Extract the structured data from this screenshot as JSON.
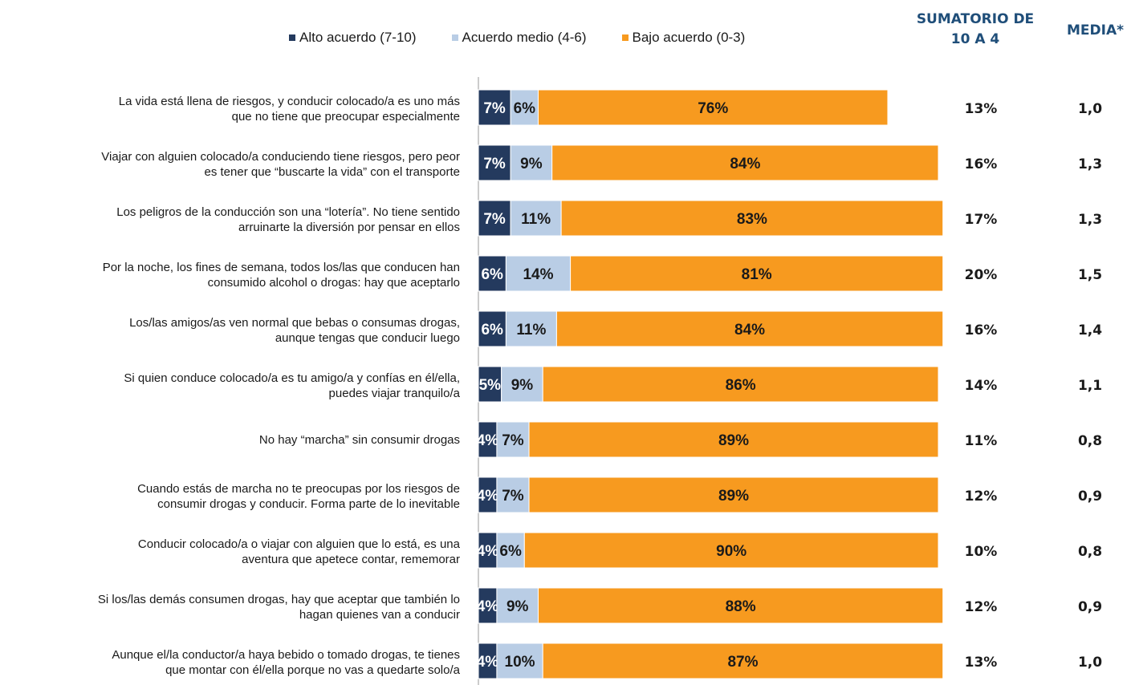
{
  "legend": [
    {
      "label": "Alto acuerdo (7-10)",
      "color": "#243a5e"
    },
    {
      "label": "Acuerdo medio (4-6)",
      "color": "#b9cde5"
    },
    {
      "label": "Bajo acuerdo (0-3)",
      "color": "#f79a1f"
    }
  ],
  "headers": {
    "sum": "SUMATORIO DE\n10 A 4",
    "media": "MEDIA*"
  },
  "chart_data": {
    "type": "bar",
    "orientation": "horizontal",
    "stacked": true,
    "categories": [
      "La vida está llena de riesgos, y conducir colocado/a es uno más\nque no tiene que preocupar especialmente",
      "Viajar con alguien colocado/a conduciendo tiene riesgos, pero peor\nes tener que “buscarte la vida” con el transporte",
      "Los peligros de la conducción son una “lotería”. No tiene sentido\narruinarte la diversión por pensar en ellos",
      "Por la noche, los fines de semana, todos los/las que conducen han\nconsumido alcohol o drogas: hay que aceptarlo",
      "Los/las amigos/as ven normal que bebas o consumas drogas,\naunque tengas que conducir luego",
      "Si quien conduce colocado/a es tu amigo/a y confías en él/ella,\npuedes viajar tranquilo/a",
      "No hay “marcha” sin consumir drogas",
      "Cuando estás de marcha no te preocupas por los riesgos de\nconsumir drogas y conducir. Forma parte de lo inevitable",
      "Conducir colocado/a o viajar con alguien que lo está, es una\naventura que apetece contar, rememorar",
      "Si los/las demás consumen drogas, hay que aceptar que también lo\nhagan quienes van a conducir",
      "Aunque el/la conductor/a haya bebido o tomado drogas, te tienes\nque montar con él/ella porque no vas a quedarte solo/a"
    ],
    "series": [
      {
        "name": "Alto acuerdo (7-10)",
        "color": "#243a5e",
        "values": [
          7,
          7,
          7,
          6,
          6,
          5,
          4,
          4,
          4,
          4,
          4
        ]
      },
      {
        "name": "Acuerdo medio (4-6)",
        "color": "#b9cde5",
        "values": [
          6,
          9,
          11,
          14,
          11,
          9,
          7,
          7,
          6,
          9,
          10
        ]
      },
      {
        "name": "Bajo acuerdo (0-3)",
        "color": "#f79a1f",
        "values": [
          76,
          84,
          83,
          81,
          84,
          86,
          89,
          89,
          90,
          88,
          87
        ]
      }
    ],
    "sumatorio": [
      "13%",
      "16%",
      "17%",
      "20%",
      "16%",
      "14%",
      "11%",
      "12%",
      "10%",
      "12%",
      "13%"
    ],
    "media": [
      "1,0",
      "1,3",
      "1,3",
      "1,5",
      "1,4",
      "1,1",
      "0,8",
      "0,9",
      "0,8",
      "0,9",
      "1,0"
    ],
    "xlim": [
      0,
      100
    ],
    "unit": "%"
  }
}
